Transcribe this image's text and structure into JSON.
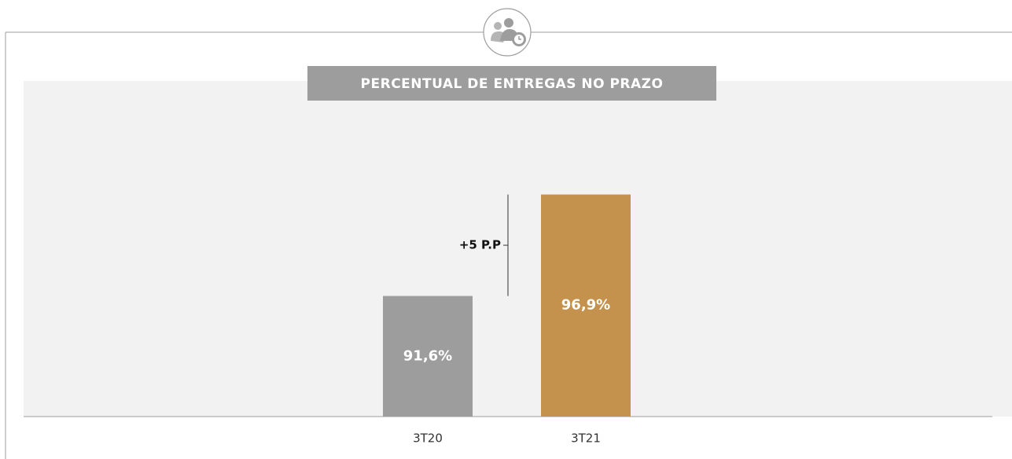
{
  "chart_data": {
    "type": "bar",
    "title": "PERCENTUAL DE ENTREGAS NO PRAZO",
    "categories": [
      "3T20",
      "3T21"
    ],
    "values": [
      91.6,
      96.9
    ],
    "value_labels": [
      "91,6%",
      "96,9%"
    ],
    "colors": [
      "#9d9d9d",
      "#c4924c"
    ],
    "annotation": "+5 P.P",
    "ylim": [
      85.3,
      100
    ]
  }
}
